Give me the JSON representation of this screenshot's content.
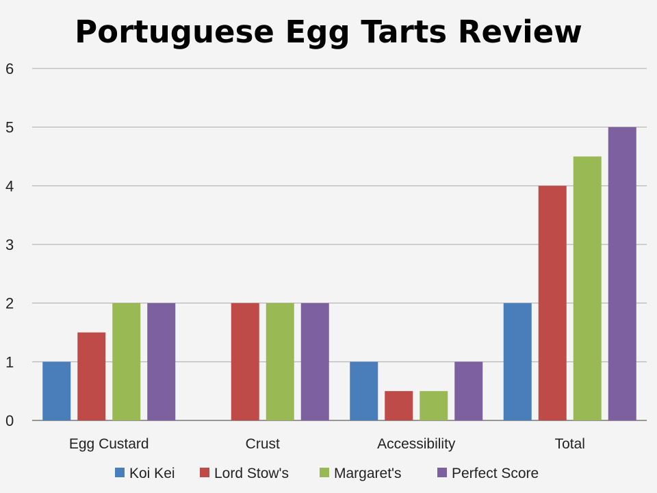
{
  "chart_data": {
    "type": "bar",
    "title": "Portuguese Egg Tarts Review",
    "xlabel": "",
    "ylabel": "",
    "categories": [
      "Egg Custard",
      "Crust",
      "Accessibility",
      "Total"
    ],
    "yticks": [
      "0",
      "1",
      "2",
      "3",
      "4",
      "5",
      "6"
    ],
    "ylim": [
      0,
      6
    ],
    "grid": true,
    "legend_position": "bottom",
    "series": [
      {
        "name": "Koi Kei",
        "color": "#4a7ebb",
        "values": [
          1,
          0,
          1,
          2
        ]
      },
      {
        "name": "Lord Stow's",
        "color": "#be4b48",
        "values": [
          1.5,
          2,
          0.5,
          4
        ]
      },
      {
        "name": "Margaret's",
        "color": "#98b954",
        "values": [
          2,
          2,
          0.5,
          4.5
        ]
      },
      {
        "name": "Perfect Score",
        "color": "#7d60a0",
        "values": [
          2,
          2,
          1,
          5
        ]
      }
    ]
  }
}
